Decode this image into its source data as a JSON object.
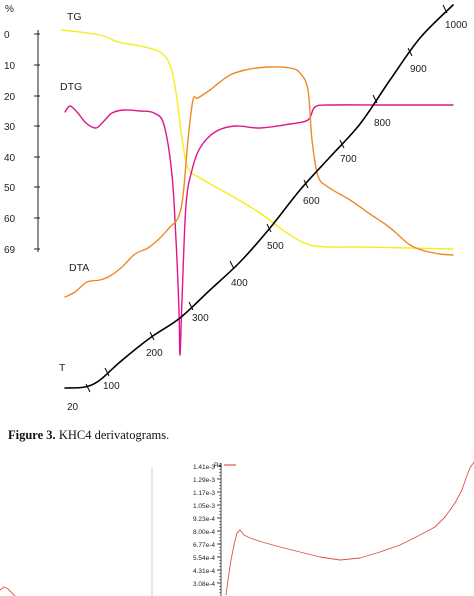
{
  "figure": {
    "caption_label": "Figure 3.",
    "caption_text": " KHC4 derivatograms."
  },
  "chart_data": [
    {
      "type": "line",
      "yaxis": {
        "unit": "%",
        "ticks": [
          "0",
          "10",
          "20",
          "30",
          "40",
          "50",
          "60",
          "69"
        ]
      },
      "temperature_axis": {
        "ticks": [
          "20",
          "100",
          "200",
          "300",
          "400",
          "500",
          "600",
          "700",
          "800",
          "900",
          "1000"
        ]
      },
      "colors": {
        "TG": "#f5ee1c",
        "DTG": "#e0158c",
        "DTA": "#ee8a25",
        "T": "#000000"
      },
      "series": [
        {
          "name": "TG",
          "points": [
            [
              62,
              30
            ],
            [
              100,
              35
            ],
            [
              118,
              42
            ],
            [
              140,
              46
            ],
            [
              160,
              52
            ],
            [
              170,
              65
            ],
            [
              176,
              92
            ],
            [
              182,
              138
            ],
            [
              188,
              168
            ],
            [
              200,
              178
            ],
            [
              230,
              195
            ],
            [
              260,
              213
            ],
            [
              290,
              235
            ],
            [
              315,
              246
            ],
            [
              360,
              247
            ],
            [
              410,
              248
            ],
            [
              453,
              249
            ]
          ]
        },
        {
          "name": "DTG",
          "points": [
            [
              65,
              112
            ],
            [
              70,
              106
            ],
            [
              77,
              112
            ],
            [
              86,
              123
            ],
            [
              96,
              128
            ],
            [
              104,
              121
            ],
            [
              112,
              113
            ],
            [
              124,
              110
            ],
            [
              140,
              111
            ],
            [
              154,
              113
            ],
            [
              164,
              125
            ],
            [
              172,
              175
            ],
            [
              176,
              240
            ],
            [
              179,
              310
            ],
            [
              180,
              355
            ],
            [
              182,
              300
            ],
            [
              186,
              205
            ],
            [
              192,
              170
            ],
            [
              200,
              148
            ],
            [
              215,
              132
            ],
            [
              235,
              126
            ],
            [
              260,
              128
            ],
            [
              290,
              124
            ],
            [
              308,
              120
            ],
            [
              315,
              107
            ],
            [
              330,
              105
            ],
            [
              380,
              105
            ],
            [
              420,
              105
            ],
            [
              453,
              105
            ]
          ]
        },
        {
          "name": "DTA",
          "points": [
            [
              65,
              297
            ],
            [
              75,
              292
            ],
            [
              87,
              282
            ],
            [
              100,
              280
            ],
            [
              110,
              276
            ],
            [
              122,
              267
            ],
            [
              135,
              254
            ],
            [
              148,
              248
            ],
            [
              160,
              238
            ],
            [
              170,
              227
            ],
            [
              178,
              218
            ],
            [
              183,
              196
            ],
            [
              188,
              140
            ],
            [
              193,
              100
            ],
            [
              198,
              98
            ],
            [
              210,
              90
            ],
            [
              230,
              75
            ],
            [
              250,
              69
            ],
            [
              270,
              67
            ],
            [
              290,
              68
            ],
            [
              300,
              73
            ],
            [
              308,
              90
            ],
            [
              312,
              140
            ],
            [
              318,
              176
            ],
            [
              328,
              187
            ],
            [
              350,
              200
            ],
            [
              370,
              214
            ],
            [
              385,
              224
            ],
            [
              395,
              232
            ],
            [
              410,
              245
            ],
            [
              425,
              251
            ],
            [
              440,
              254
            ],
            [
              453,
              255
            ]
          ]
        },
        {
          "name": "T",
          "points": [
            [
              65,
              388
            ],
            [
              85,
              387
            ],
            [
              100,
              380
            ],
            [
              120,
              362
            ],
            [
              150,
              338
            ],
            [
              180,
              318
            ],
            [
              210,
              290
            ],
            [
              240,
              262
            ],
            [
              270,
              228
            ],
            [
              300,
              190
            ],
            [
              330,
              157
            ],
            [
              360,
              124
            ],
            [
              390,
              80
            ],
            [
              420,
              38
            ],
            [
              453,
              5
            ]
          ]
        }
      ]
    },
    {
      "type": "line",
      "yaxis": {
        "unit": "Pa",
        "ticks": [
          "1.41e-3",
          "1.29e-3",
          "1.17e-3",
          "1.05e-3",
          "9.23e-4",
          "8.00e-4",
          "6.77e-4",
          "5.54e-4",
          "4.31e-4",
          "3.08e-4"
        ]
      },
      "colors": {
        "line": "#e05050",
        "axis": "#444444"
      },
      "series": [
        {
          "name": "",
          "points": [
            [
              226,
              595
            ],
            [
              228,
              580
            ],
            [
              231,
              560
            ],
            [
              234,
              545
            ],
            [
              237,
              533
            ],
            [
              240,
              530
            ],
            [
              244,
              535
            ],
            [
              250,
              538
            ],
            [
              262,
              542
            ],
            [
              280,
              547
            ],
            [
              300,
              552
            ],
            [
              320,
              557
            ],
            [
              340,
              560
            ],
            [
              360,
              558
            ],
            [
              380,
              552
            ],
            [
              400,
              545
            ],
            [
              420,
              535
            ],
            [
              435,
              527
            ],
            [
              445,
              517
            ],
            [
              455,
              503
            ],
            [
              462,
              490
            ],
            [
              466,
              478
            ],
            [
              470,
              468
            ],
            [
              474,
              462
            ]
          ]
        },
        {
          "name": "",
          "points": [
            [
              0,
              590
            ],
            [
              4,
              587
            ],
            [
              8,
              589
            ],
            [
              12,
              593
            ],
            [
              15,
              596
            ]
          ]
        }
      ]
    }
  ]
}
